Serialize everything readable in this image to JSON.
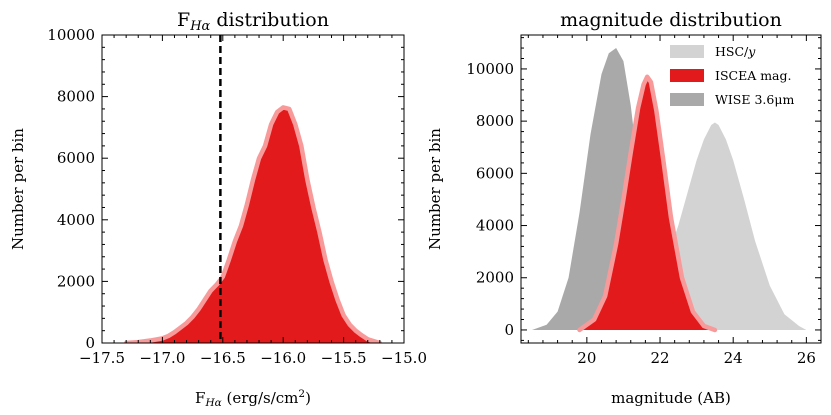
{
  "chart_data": [
    {
      "type": "area",
      "title": "F<sub>Hα</sub> distribution",
      "title_parts": [
        "F",
        "Hα",
        " distribution"
      ],
      "xlabel": "F<sub>Hα</sub> (erg/s/cm²)",
      "xlabel_parts": [
        "F",
        "Hα",
        " (erg/s/cm",
        "2",
        ")"
      ],
      "ylabel": "Number per bin",
      "xlim": [
        -17.5,
        -15.0
      ],
      "ylim": [
        0,
        10000
      ],
      "xticks": [
        -17.5,
        -17.0,
        -16.5,
        -16.0,
        -15.5,
        -15.0
      ],
      "xtick_labels": [
        "−17.5",
        "−17.0",
        "−16.5",
        "−16.0",
        "−15.5",
        "−15.0"
      ],
      "yticks": [
        0,
        2000,
        4000,
        6000,
        8000,
        10000
      ],
      "ytick_labels": [
        "0",
        "2000",
        "4000",
        "6000",
        "8000",
        "10000"
      ],
      "grid": false,
      "vline": {
        "x": -16.52,
        "style": "dashed",
        "color": "#000000"
      },
      "series": [
        {
          "fill": "#e31a1c",
          "outline": "#f89a9a",
          "x": [
            -17.3,
            -17.2,
            -17.1,
            -17.0,
            -16.95,
            -16.9,
            -16.85,
            -16.8,
            -16.75,
            -16.7,
            -16.65,
            -16.6,
            -16.55,
            -16.5,
            -16.45,
            -16.4,
            -16.35,
            -16.3,
            -16.25,
            -16.2,
            -16.15,
            -16.1,
            -16.05,
            -16.0,
            -15.95,
            -15.9,
            -15.85,
            -15.8,
            -15.75,
            -15.7,
            -15.65,
            -15.6,
            -15.55,
            -15.5,
            -15.45,
            -15.4,
            -15.35,
            -15.3,
            -15.25,
            -15.2
          ],
          "y": [
            0,
            30,
            80,
            150,
            230,
            350,
            500,
            650,
            850,
            1100,
            1400,
            1700,
            1900,
            2150,
            2700,
            3300,
            3800,
            4500,
            5300,
            6000,
            6400,
            7100,
            7500,
            7650,
            7600,
            7100,
            6400,
            5300,
            4400,
            3600,
            2700,
            2000,
            1400,
            900,
            600,
            400,
            250,
            120,
            60,
            0
          ]
        }
      ]
    },
    {
      "type": "area",
      "title": "magnitude distribution",
      "xlabel": "magnitude (AB)",
      "ylabel": "Number per bin",
      "xlim": [
        18.2,
        26.4
      ],
      "ylim": [
        -500,
        11300
      ],
      "xticks": [
        20,
        22,
        24,
        26
      ],
      "xtick_labels": [
        "20",
        "22",
        "24",
        "26"
      ],
      "yticks": [
        0,
        2000,
        4000,
        6000,
        8000,
        10000
      ],
      "ytick_labels": [
        "0",
        "2000",
        "4000",
        "6000",
        "8000",
        "10000"
      ],
      "grid": false,
      "legend": {
        "placement": "top-right",
        "entries": [
          {
            "parts": [
              "HSC/",
              "y"
            ],
            "color": "#d3d3d3"
          },
          {
            "parts": [
              "ISCEA mag.",
              ""
            ],
            "color": "#e31a1c"
          },
          {
            "parts": [
              "WISE 3.6μm",
              ""
            ],
            "color": "#a9a9a9"
          }
        ]
      },
      "series": [
        {
          "name": "HSC/y",
          "fill": "#d3d3d3",
          "outline": null,
          "x": [
            20.6,
            21.0,
            21.5,
            22.0,
            22.5,
            22.8,
            23.0,
            23.2,
            23.4,
            23.5,
            23.6,
            23.8,
            24.0,
            24.3,
            24.6,
            25.0,
            25.4,
            25.8,
            26.0
          ],
          "y": [
            0,
            200,
            800,
            2000,
            4000,
            5500,
            6500,
            7300,
            7850,
            7950,
            7850,
            7300,
            6500,
            5000,
            3400,
            1700,
            600,
            150,
            0
          ]
        },
        {
          "name": "WISE 3.6μm",
          "fill": "#a9a9a9",
          "outline": null,
          "x": [
            18.5,
            18.9,
            19.2,
            19.5,
            19.8,
            20.1,
            20.4,
            20.6,
            20.8,
            21.0,
            21.2,
            21.4,
            21.6,
            21.8,
            22.0,
            22.2,
            22.5
          ],
          "y": [
            0,
            200,
            700,
            2000,
            4500,
            7500,
            9800,
            10600,
            10800,
            10300,
            8600,
            6200,
            4000,
            2200,
            1000,
            350,
            0
          ]
        },
        {
          "name": "ISCEA mag.",
          "fill": "#e31a1c",
          "outline": "#f89a9a",
          "x": [
            19.8,
            20.2,
            20.5,
            20.8,
            21.0,
            21.2,
            21.4,
            21.55,
            21.65,
            21.75,
            21.9,
            22.1,
            22.3,
            22.6,
            22.9,
            23.2,
            23.5
          ],
          "y": [
            0,
            400,
            1300,
            3300,
            5000,
            6800,
            8500,
            9400,
            9700,
            9500,
            8400,
            6400,
            4300,
            2000,
            700,
            150,
            0
          ]
        }
      ]
    }
  ]
}
